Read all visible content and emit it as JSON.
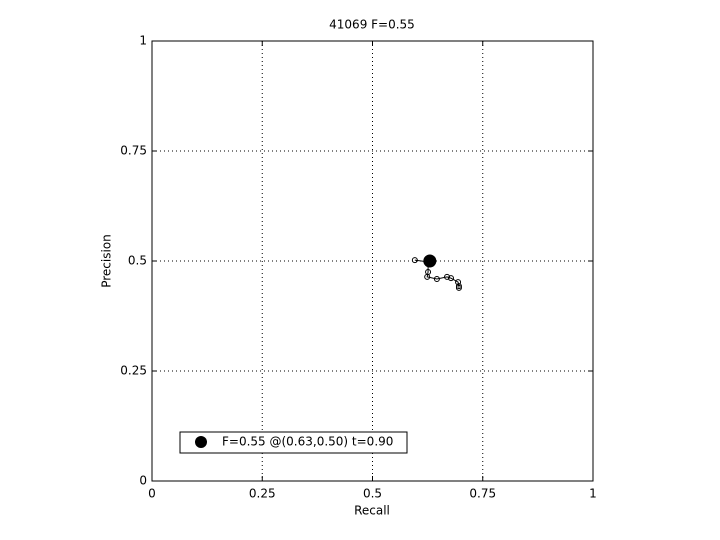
{
  "chart_data": {
    "type": "line",
    "title": "41069 F=0.55",
    "x_label": "Recall",
    "y_label": "Precision",
    "xlim": [
      0,
      1
    ],
    "ylim": [
      0,
      1
    ],
    "xticks": [
      0,
      0.25,
      0.5,
      0.75,
      1
    ],
    "yticks": [
      0,
      0.25,
      0.5,
      0.75,
      1
    ],
    "grid": true,
    "series": [
      {
        "color": "#000000",
        "x": [
          0.596,
          0.626,
          0.626,
          0.624,
          0.646,
          0.669,
          0.678,
          0.694,
          0.696,
          0.696
        ],
        "values": [
          0.502,
          0.498,
          0.475,
          0.464,
          0.459,
          0.464,
          0.461,
          0.452,
          0.443,
          0.439
        ]
      }
    ],
    "best_point": {
      "name": "F=0.55 @(0.63,0.50) t=0.90",
      "x": 0.63,
      "y": 0.5,
      "color": "#000000"
    },
    "legend_location": "lower left"
  }
}
